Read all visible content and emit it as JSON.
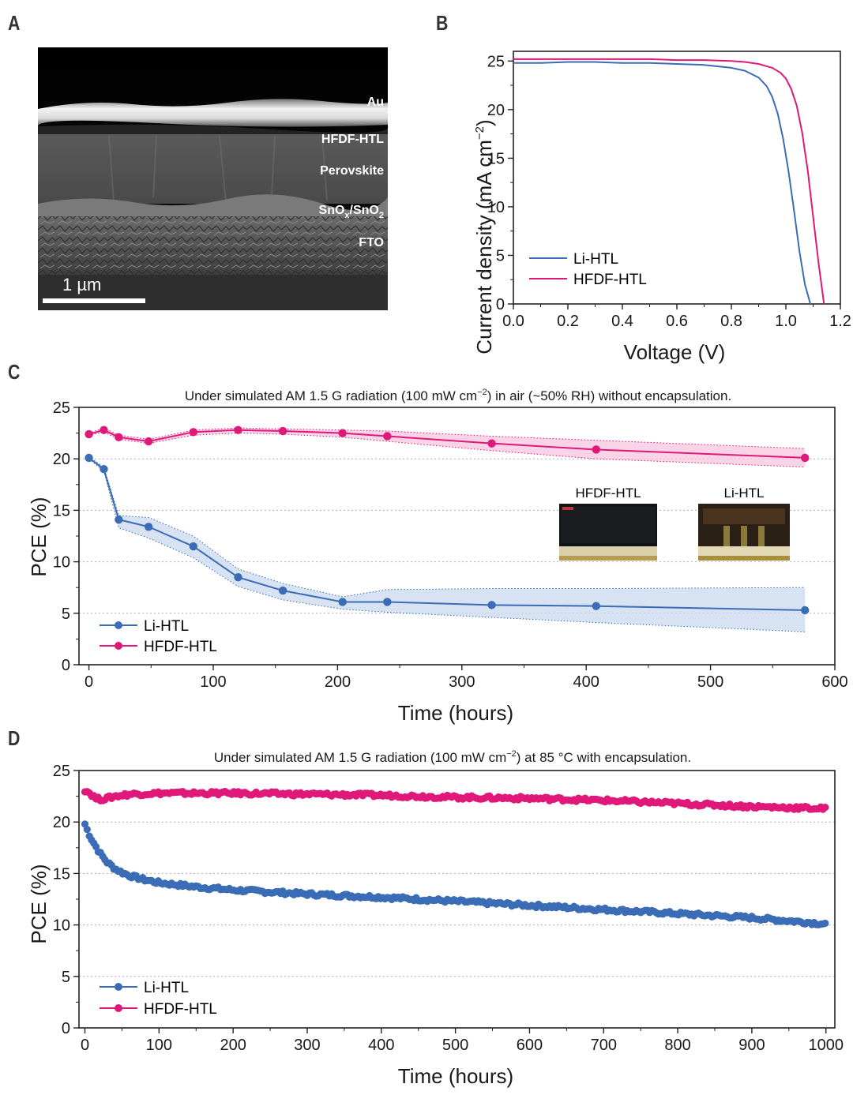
{
  "panel_labels": {
    "a": "A",
    "b": "B",
    "c": "C",
    "d": "D"
  },
  "micrograph": {
    "layers": [
      {
        "key": "au",
        "label": "Au"
      },
      {
        "key": "htl",
        "label": "HFDF-HTL"
      },
      {
        "key": "pero",
        "label": "Perovskite"
      },
      {
        "key": "sno",
        "label": "SnO",
        "sub1": "x",
        "mid": "/SnO",
        "sub2": "2"
      },
      {
        "key": "fto",
        "label": "FTO"
      }
    ],
    "scale_bar": "1 µm"
  },
  "photos": {
    "left_label": "HFDF-HTL",
    "right_label": "Li-HTL"
  },
  "colors": {
    "li": "#3a6db5",
    "hfdf": "#e0187a",
    "li_band": "#c9d8ee",
    "hfdf_band": "#f6c6dd"
  },
  "chart_data": [
    {
      "id": "B",
      "type": "line",
      "xlabel": "Voltage (V)",
      "ylabel_main": "Current density (mA cm",
      "ylabel_sup": "−2",
      "ylabel_end": ")",
      "xlim": [
        0,
        1.2
      ],
      "ylim": [
        0,
        26
      ],
      "xticks": [
        "0.0",
        "0.2",
        "0.4",
        "0.6",
        "0.8",
        "1.0",
        "1.2"
      ],
      "yticks": [
        "0",
        "5",
        "10",
        "15",
        "20",
        "25"
      ],
      "legend": "bottom-left",
      "series": [
        {
          "name": "Li-HTL",
          "color": "#3a6db5",
          "x": [
            0,
            0.1,
            0.2,
            0.3,
            0.4,
            0.5,
            0.6,
            0.7,
            0.8,
            0.85,
            0.9,
            0.93,
            0.95,
            0.97,
            0.99,
            1.01,
            1.03,
            1.05,
            1.07,
            1.09
          ],
          "y": [
            24.8,
            24.8,
            24.9,
            24.9,
            24.8,
            24.8,
            24.7,
            24.6,
            24.3,
            24.0,
            23.3,
            22.4,
            21.3,
            19.6,
            17.0,
            13.6,
            9.6,
            5.4,
            2.0,
            0
          ]
        },
        {
          "name": "HFDF-HTL",
          "color": "#e0187a",
          "x": [
            0,
            0.1,
            0.2,
            0.3,
            0.4,
            0.5,
            0.6,
            0.7,
            0.8,
            0.85,
            0.9,
            0.95,
            0.98,
            1.0,
            1.02,
            1.04,
            1.06,
            1.08,
            1.1,
            1.12,
            1.14
          ],
          "y": [
            25.2,
            25.2,
            25.2,
            25.2,
            25.2,
            25.2,
            25.1,
            25.1,
            25.0,
            24.9,
            24.7,
            24.3,
            23.8,
            23.2,
            22.1,
            20.4,
            17.6,
            13.8,
            9.0,
            4.2,
            0
          ]
        }
      ]
    },
    {
      "id": "C",
      "type": "line",
      "title_main": "Under simulated AM 1.5 G radiation  (100 mW cm",
      "title_sup": "−2",
      "title_end": ") in air (~50% RH) without encapsulation.",
      "xlabel": "Time (hours)",
      "ylabel": "PCE (%)",
      "xlim": [
        -8,
        600
      ],
      "ylim": [
        0,
        25
      ],
      "xticks": [
        "0",
        "100",
        "200",
        "300",
        "400",
        "500",
        "600"
      ],
      "yticks": [
        "0",
        "5",
        "10",
        "15",
        "20",
        "25"
      ],
      "grid": true,
      "legend": "bottom-left",
      "series": [
        {
          "name": "Li-HTL",
          "color": "#3a6db5",
          "x": [
            0,
            12,
            24,
            48,
            84,
            120,
            156,
            204,
            240,
            324,
            408,
            576
          ],
          "y": [
            20.1,
            19.0,
            14.1,
            13.4,
            11.5,
            8.5,
            7.2,
            6.1,
            6.1,
            5.8,
            5.7,
            5.3
          ],
          "band_low": [
            20.0,
            18.8,
            13.3,
            12.3,
            10.4,
            7.6,
            6.3,
            5.4,
            5.1,
            4.6,
            4.1,
            3.2
          ],
          "band_high": [
            20.2,
            19.2,
            14.5,
            14.3,
            12.5,
            9.3,
            7.9,
            6.6,
            7.3,
            7.4,
            7.4,
            7.5
          ]
        },
        {
          "name": "HFDF-HTL",
          "color": "#e0187a",
          "x": [
            0,
            12,
            24,
            48,
            84,
            120,
            156,
            204,
            240,
            324,
            408,
            576
          ],
          "y": [
            22.4,
            22.8,
            22.1,
            21.7,
            22.6,
            22.8,
            22.7,
            22.5,
            22.2,
            21.5,
            20.9,
            20.1
          ],
          "band_low": [
            22.3,
            22.6,
            21.9,
            21.5,
            22.3,
            22.5,
            22.4,
            22.1,
            21.7,
            20.8,
            20.0,
            19.2
          ],
          "band_high": [
            22.5,
            23.0,
            22.3,
            21.9,
            22.8,
            23.0,
            22.9,
            22.8,
            22.7,
            22.2,
            21.8,
            21.0
          ]
        }
      ]
    },
    {
      "id": "D",
      "type": "scatter",
      "title_main": "Under simulated AM 1.5 G radiation  (100 mW cm",
      "title_sup": "−2",
      "title_end": ") at 85 °C with encapsulation.",
      "xlabel": "Time (hours)",
      "ylabel": "PCE (%)",
      "xlim": [
        -8,
        1012
      ],
      "ylim": [
        0,
        25
      ],
      "xticks": [
        "0",
        "100",
        "200",
        "300",
        "400",
        "500",
        "600",
        "700",
        "800",
        "900",
        "1000"
      ],
      "yticks": [
        "0",
        "5",
        "10",
        "15",
        "20",
        "25"
      ],
      "grid": true,
      "legend": "bottom-left",
      "series": [
        {
          "name": "Li-HTL",
          "color": "#3a6db5",
          "x": [
            0,
            5,
            10,
            20,
            30,
            40,
            50,
            60,
            80,
            100,
            150,
            200,
            300,
            400,
            500,
            600,
            700,
            800,
            900,
            1000
          ],
          "y": [
            19.8,
            18.9,
            18.2,
            17.0,
            16.1,
            15.5,
            15.1,
            14.8,
            14.4,
            14.1,
            13.7,
            13.4,
            13.0,
            12.7,
            12.3,
            11.9,
            11.5,
            11.1,
            10.7,
            10.1
          ]
        },
        {
          "name": "HFDF-HTL",
          "color": "#e0187a",
          "x": [
            0,
            5,
            10,
            15,
            20,
            30,
            40,
            60,
            100,
            150,
            200,
            300,
            400,
            500,
            600,
            700,
            800,
            900,
            1000
          ],
          "y": [
            23.1,
            22.9,
            22.6,
            22.3,
            22.2,
            22.3,
            22.5,
            22.7,
            22.8,
            22.8,
            22.8,
            22.7,
            22.6,
            22.4,
            22.3,
            22.1,
            21.8,
            21.5,
            21.3
          ]
        }
      ]
    }
  ]
}
